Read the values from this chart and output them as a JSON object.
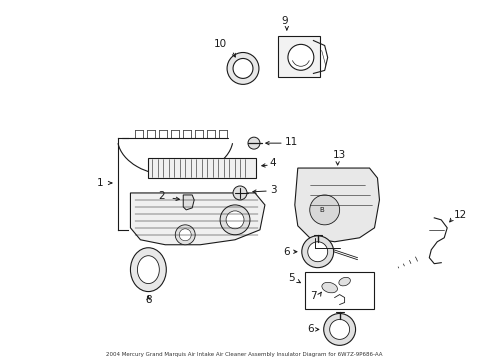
{
  "title": "2004 Mercury Grand Marquis Air Intake Air Cleaner Assembly Insulator Diagram for 6W7Z-9P686-AA",
  "background_color": "#ffffff",
  "line_color": "#1a1a1a",
  "label_color": "#000000",
  "figsize": [
    4.89,
    3.6
  ],
  "dpi": 100
}
